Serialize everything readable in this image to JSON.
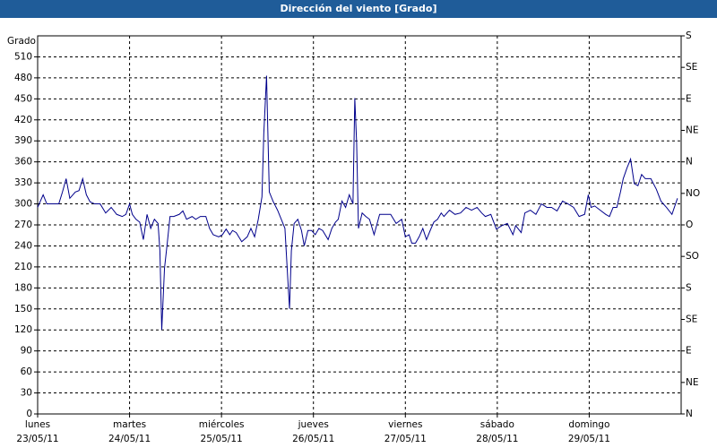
{
  "chart_data": {
    "type": "line",
    "title": "Dirección del viento [Grado]",
    "ylabel": "Grado",
    "grid": true,
    "xlim": [
      0,
      7
    ],
    "xticks": [
      {
        "value": 0,
        "label": "lunes"
      },
      {
        "value": 1,
        "label": "martes"
      },
      {
        "value": 2,
        "label": "miércoles"
      },
      {
        "value": 3,
        "label": "jueves"
      },
      {
        "value": 4,
        "label": "viernes"
      },
      {
        "value": 5,
        "label": "sábado"
      },
      {
        "value": 6,
        "label": "domingo"
      }
    ],
    "xtick_dates": [
      "23/05/11",
      "24/05/11",
      "25/05/11",
      "26/05/11",
      "27/05/11",
      "28/05/11",
      "29/05/11"
    ],
    "ylim": [
      0,
      540
    ],
    "yticks": [
      0,
      30,
      60,
      90,
      120,
      150,
      180,
      210,
      240,
      270,
      300,
      330,
      360,
      390,
      420,
      450,
      480,
      510
    ],
    "y2lim": [
      0,
      540
    ],
    "y2ticks": [
      {
        "value": 540,
        "label": "S"
      },
      {
        "value": 495,
        "label": "SE"
      },
      {
        "value": 450,
        "label": "E"
      },
      {
        "value": 405,
        "label": "NE"
      },
      {
        "value": 360,
        "label": "N"
      },
      {
        "value": 315,
        "label": "NO"
      },
      {
        "value": 270,
        "label": "O"
      },
      {
        "value": 225,
        "label": "SO"
      },
      {
        "value": 180,
        "label": "S"
      },
      {
        "value": 135,
        "label": "SE"
      },
      {
        "value": 90,
        "label": "E"
      },
      {
        "value": 45,
        "label": "NE"
      },
      {
        "value": 0,
        "label": "N"
      }
    ],
    "series": [
      {
        "color": "#00008b",
        "x": [
          0,
          0.06,
          0.1,
          0.14,
          0.18,
          0.23,
          0.27,
          0.31,
          0.35,
          0.41,
          0.45,
          0.49,
          0.53,
          0.57,
          0.62,
          0.68,
          0.74,
          0.8,
          0.86,
          0.92,
          0.96,
          1.0,
          1.03,
          1.07,
          1.11,
          1.15,
          1.19,
          1.23,
          1.27,
          1.31,
          1.33,
          1.35,
          1.38,
          1.41,
          1.44,
          1.48,
          1.54,
          1.58,
          1.62,
          1.68,
          1.72,
          1.77,
          1.83,
          1.87,
          1.91,
          1.97,
          2.01,
          2.05,
          2.09,
          2.12,
          2.16,
          2.22,
          2.28,
          2.32,
          2.36,
          2.4,
          2.44,
          2.46,
          2.49,
          2.5,
          2.52,
          2.56,
          2.61,
          2.65,
          2.69,
          2.72,
          2.74,
          2.76,
          2.79,
          2.83,
          2.87,
          2.9,
          2.94,
          2.98,
          3.02,
          3.06,
          3.1,
          3.16,
          3.2,
          3.24,
          3.27,
          3.31,
          3.35,
          3.39,
          3.43,
          3.45,
          3.47,
          3.49,
          3.53,
          3.57,
          3.61,
          3.66,
          3.72,
          3.78,
          3.84,
          3.9,
          3.96,
          4.0,
          4.04,
          4.07,
          4.11,
          4.15,
          4.19,
          4.23,
          4.27,
          4.31,
          4.35,
          4.39,
          4.42,
          4.48,
          4.54,
          4.6,
          4.66,
          4.72,
          4.78,
          4.83,
          4.87,
          4.93,
          4.99,
          5.05,
          5.11,
          5.17,
          5.2,
          5.26,
          5.3,
          5.36,
          5.42,
          5.48,
          5.54,
          5.59,
          5.65,
          5.71,
          5.77,
          5.83,
          5.89,
          5.95,
          5.99,
          6.02,
          6.06,
          6.12,
          6.18,
          6.22,
          6.26,
          6.3,
          6.34,
          6.37,
          6.41,
          6.45,
          6.49,
          6.53,
          6.57,
          6.61,
          6.67,
          6.73,
          6.78,
          6.84,
          6.9,
          6.96
        ],
        "values": [
          295,
          313,
          300,
          300,
          300,
          300,
          317,
          336,
          308,
          317,
          319,
          336,
          313,
          303,
          300,
          300,
          287,
          295,
          285,
          282,
          285,
          300,
          285,
          278,
          274,
          249,
          285,
          265,
          278,
          272,
          233,
          120,
          208,
          244,
          282,
          282,
          285,
          290,
          278,
          282,
          278,
          282,
          282,
          265,
          256,
          253,
          256,
          264,
          256,
          262,
          259,
          246,
          253,
          265,
          253,
          278,
          310,
          400,
          483,
          426,
          317,
          304,
          291,
          278,
          265,
          195,
          150,
          233,
          272,
          278,
          262,
          240,
          262,
          262,
          256,
          265,
          262,
          249,
          265,
          274,
          278,
          304,
          295,
          313,
          300,
          451,
          387,
          265,
          287,
          282,
          278,
          256,
          285,
          285,
          285,
          272,
          278,
          253,
          256,
          244,
          244,
          253,
          265,
          249,
          262,
          274,
          278,
          287,
          282,
          291,
          285,
          287,
          295,
          291,
          295,
          287,
          282,
          285,
          264,
          269,
          272,
          256,
          269,
          259,
          287,
          291,
          285,
          300,
          295,
          295,
          290,
          304,
          300,
          295,
          282,
          285,
          313,
          295,
          297,
          291,
          285,
          282,
          295,
          295,
          317,
          336,
          351,
          364,
          329,
          326,
          342,
          336,
          336,
          321,
          304,
          295,
          285,
          308
        ]
      }
    ]
  }
}
